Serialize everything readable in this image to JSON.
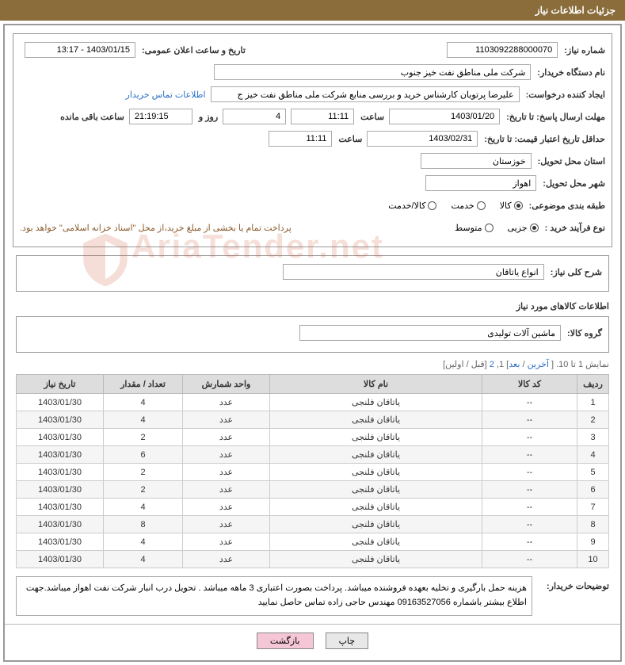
{
  "header": {
    "title": "جزئیات اطلاعات نیاز"
  },
  "form": {
    "need_number_label": "شماره نیاز:",
    "need_number": "1103092288000070",
    "public_dt_label": "تاریخ و ساعت اعلان عمومی:",
    "public_dt": "1403/01/15 - 13:17",
    "buyer_org_label": "نام دستگاه خریدار:",
    "buyer_org": "شرکت ملی مناطق نفت خیز جنوب",
    "requester_label": "ایجاد کننده درخواست:",
    "requester": "علیرضا  پرتویان  کارشناس خرید و بررسی منابع  شرکت ملی مناطق نفت خیز ج",
    "contact_link": "اطلاعات تماس خریدار",
    "deadline_send_label": "مهلت ارسال پاسخ: تا تاریخ:",
    "deadline_date": "1403/01/20",
    "time_label": "ساعت",
    "deadline_time": "11:11",
    "days_count": "4",
    "days_label": "روز و",
    "countdown": "21:19:15",
    "remaining_label": "ساعت باقی مانده",
    "validity_label": "حداقل تاریخ اعتبار قیمت: تا تاریخ:",
    "validity_date": "1403/02/31",
    "validity_time": "11:11",
    "province_label": "استان محل تحویل:",
    "province": "خوزستان",
    "city_label": "شهر محل تحویل:",
    "city": "اهواز",
    "category_label": "طبقه بندی موضوعی:",
    "cat_goods": "کالا",
    "cat_service": "خدمت",
    "cat_both": "کالا/خدمت",
    "process_label": "نوع فرآیند خرید :",
    "proc_small": "جزیی",
    "proc_medium": "متوسط",
    "treasury_note": "پرداخت تمام یا بخشی از مبلغ خرید،از محل \"اسناد خزانه اسلامی\" خواهد بود.",
    "general_desc_label": "شرح کلی نیاز:",
    "general_desc": "انواع یاتاقان",
    "goods_section_title": "اطلاعات کالاهای مورد نیاز",
    "goods_group_label": "گروه کالا:",
    "goods_group": "ماشین آلات تولیدی"
  },
  "nav": {
    "showing": "نمایش 1 تا 10. [ ",
    "last": "آخرین",
    "sep1": " / ",
    "next": "بعد",
    "mid": "] 1, ",
    "two": "2",
    "tail": " [قبل / اولین]"
  },
  "table": {
    "columns": [
      "ردیف",
      "کد کالا",
      "نام کالا",
      "واحد شمارش",
      "تعداد / مقدار",
      "تاریخ نیاز"
    ],
    "col_widths": [
      "40px",
      "120px",
      "auto",
      "110px",
      "100px",
      "110px"
    ],
    "rows": [
      [
        "1",
        "--",
        "یاتاقان فلنجی",
        "عدد",
        "4",
        "1403/01/30"
      ],
      [
        "2",
        "--",
        "یاتاقان فلنجی",
        "عدد",
        "4",
        "1403/01/30"
      ],
      [
        "3",
        "--",
        "یاتاقان فلنجی",
        "عدد",
        "2",
        "1403/01/30"
      ],
      [
        "4",
        "--",
        "یاتاقان فلنجی",
        "عدد",
        "6",
        "1403/01/30"
      ],
      [
        "5",
        "--",
        "یاتاقان فلنجی",
        "عدد",
        "2",
        "1403/01/30"
      ],
      [
        "6",
        "--",
        "یاتاقان فلنجی",
        "عدد",
        "2",
        "1403/01/30"
      ],
      [
        "7",
        "--",
        "یاتاقان فلنجی",
        "عدد",
        "4",
        "1403/01/30"
      ],
      [
        "8",
        "--",
        "یاتاقان فلنجی",
        "عدد",
        "8",
        "1403/01/30"
      ],
      [
        "9",
        "--",
        "یاتاقان فلنجی",
        "عدد",
        "4",
        "1403/01/30"
      ],
      [
        "10",
        "--",
        "یاتاقان فلنجی",
        "عدد",
        "4",
        "1403/01/30"
      ]
    ]
  },
  "buyer_notes": {
    "label": "توضیحات خریدار:",
    "text": "هزینه حمل بارگیری و تخلیه بعهده فروشنده میباشد. پرداخت بصورت اعتباری 3 ماهه میباشد . تحویل درب انبار شرکت نفت اهواز میباشد.جهت اطلاع بیشتر باشماره 09163527056 مهندس حاجی زاده تماس حاصل نمایید"
  },
  "buttons": {
    "print": "چاپ",
    "back": "بازگشت"
  },
  "watermark": "AriaTender.net",
  "colors": {
    "header_bg": "#8a6d3b",
    "link": "#2a6fc9",
    "note": "#8a5a2b"
  }
}
